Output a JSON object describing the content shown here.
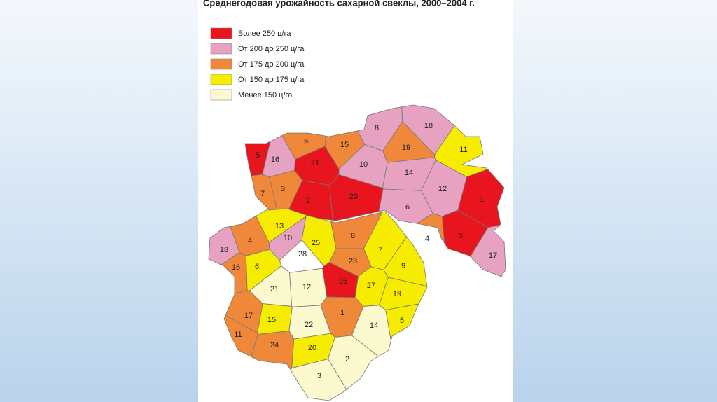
{
  "header": {
    "title": "Среднегодовая урожайность сахарной свеклы, 2000–2004 г."
  },
  "legend": [
    {
      "label": "Более 250 ц/га",
      "color": "#e8141e"
    },
    {
      "label": "От 200 до 250 ц/га",
      "color": "#e6a2c0"
    },
    {
      "label": "От 175 до 200 ц/га",
      "color": "#f0883a"
    },
    {
      "label": "От 150 до 175 ц/га",
      "color": "#f5ec00"
    },
    {
      "label": "Менее 150 ц/га",
      "color": "#fdf9cf"
    }
  ],
  "regions": [
    {
      "label": "5",
      "color": "#e8141e"
    },
    {
      "label": "16",
      "color": "#e6a2c0"
    },
    {
      "label": "9",
      "color": "#f0883a"
    },
    {
      "label": "21",
      "color": "#e8141e"
    },
    {
      "label": "15",
      "color": "#f0883a"
    },
    {
      "label": "8",
      "color": "#e6a2c0"
    },
    {
      "label": "18",
      "color": "#e6a2c0"
    },
    {
      "label": "19",
      "color": "#f0883a"
    },
    {
      "label": "11",
      "color": "#f5ec00"
    },
    {
      "label": "10",
      "color": "#e6a2c0"
    },
    {
      "label": "14",
      "color": "#e6a2c0"
    },
    {
      "label": "12",
      "color": "#e6a2c0"
    },
    {
      "label": "1",
      "color": "#e8141e"
    },
    {
      "label": "7",
      "color": "#f0883a"
    },
    {
      "label": "3",
      "color": "#f0883a"
    },
    {
      "label": "2",
      "color": "#e8141e"
    },
    {
      "label": "20",
      "color": "#e8141e"
    },
    {
      "label": "6",
      "color": "#e6a2c0"
    },
    {
      "label": "4",
      "color": "#f0883a"
    },
    {
      "label": "5",
      "color": "#e8141e"
    },
    {
      "label": "17",
      "color": "#e6a2c0"
    },
    {
      "label": "13",
      "color": "#f5ec00"
    },
    {
      "label": "18",
      "color": "#e6a2c0"
    },
    {
      "label": "4",
      "color": "#f0883a"
    },
    {
      "label": "10",
      "color": "#e6a2c0"
    },
    {
      "label": "25",
      "color": "#f5ec00"
    },
    {
      "label": "28",
      "color": "#ffffff"
    },
    {
      "label": "8",
      "color": "#f0883a"
    },
    {
      "label": "16",
      "color": "#f0883a"
    },
    {
      "label": "6",
      "color": "#f5ec00"
    },
    {
      "label": "7",
      "color": "#f5ec00"
    },
    {
      "label": "23",
      "color": "#f0883a"
    },
    {
      "label": "26",
      "color": "#e8141e"
    },
    {
      "label": "9",
      "color": "#f5ec00"
    },
    {
      "label": "21",
      "color": "#fdf9cf"
    },
    {
      "label": "12",
      "color": "#fdf9cf"
    },
    {
      "label": "27",
      "color": "#f5ec00"
    },
    {
      "label": "19",
      "color": "#f5ec00"
    },
    {
      "label": "17",
      "color": "#f0883a"
    },
    {
      "label": "15",
      "color": "#f5ec00"
    },
    {
      "label": "1",
      "color": "#f0883a"
    },
    {
      "label": "5",
      "color": "#f5ec00"
    },
    {
      "label": "22",
      "color": "#fdf9cf"
    },
    {
      "label": "14",
      "color": "#fdf9cf"
    },
    {
      "label": "11",
      "color": "#f0883a"
    },
    {
      "label": "24",
      "color": "#f0883a"
    },
    {
      "label": "20",
      "color": "#f5ec00"
    },
    {
      "label": "2",
      "color": "#fdf9cf"
    },
    {
      "label": "3",
      "color": "#fdf9cf"
    }
  ]
}
